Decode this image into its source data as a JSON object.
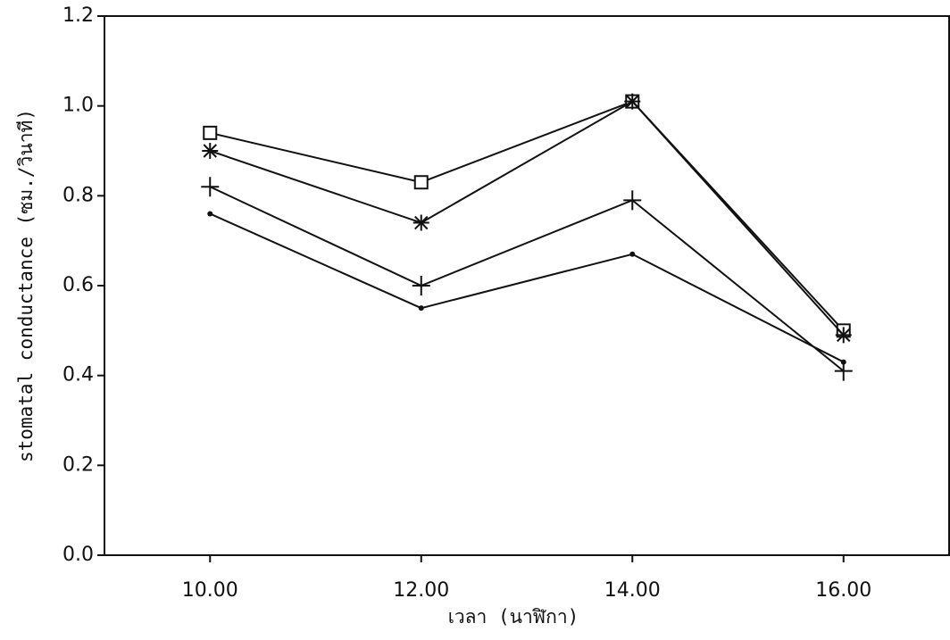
{
  "chart_data": {
    "type": "line",
    "x_label": "เวลา (นาฬิกา)",
    "y_label": "stomatal conductance (ซม./วินาที)",
    "x": [
      10,
      12,
      14,
      16
    ],
    "xlim": [
      9,
      17
    ],
    "xticks": [
      {
        "value": 10,
        "label": "10.00"
      },
      {
        "value": 12,
        "label": "12.00"
      },
      {
        "value": 14,
        "label": "14.00"
      },
      {
        "value": 16,
        "label": "16.00"
      }
    ],
    "ylim": [
      0,
      1.2
    ],
    "yticks": [
      {
        "value": 0,
        "label": "0.0"
      },
      0.2,
      0.4,
      0.6,
      0.8,
      {
        "value": 1,
        "label": "1.0"
      },
      1.2
    ],
    "grid": false,
    "series": [
      {
        "color": "#111111",
        "marker": "square",
        "values": [
          0.94,
          0.83,
          1.01,
          0.5
        ]
      },
      {
        "color": "#111111",
        "marker": "star",
        "values": [
          0.9,
          0.74,
          1.01,
          0.49
        ]
      },
      {
        "color": "#111111",
        "marker": "plus",
        "values": [
          0.82,
          0.6,
          0.79,
          0.41
        ]
      },
      {
        "color": "#111111",
        "marker": "dot",
        "values": [
          0.76,
          0.55,
          0.67,
          0.43
        ]
      }
    ]
  }
}
